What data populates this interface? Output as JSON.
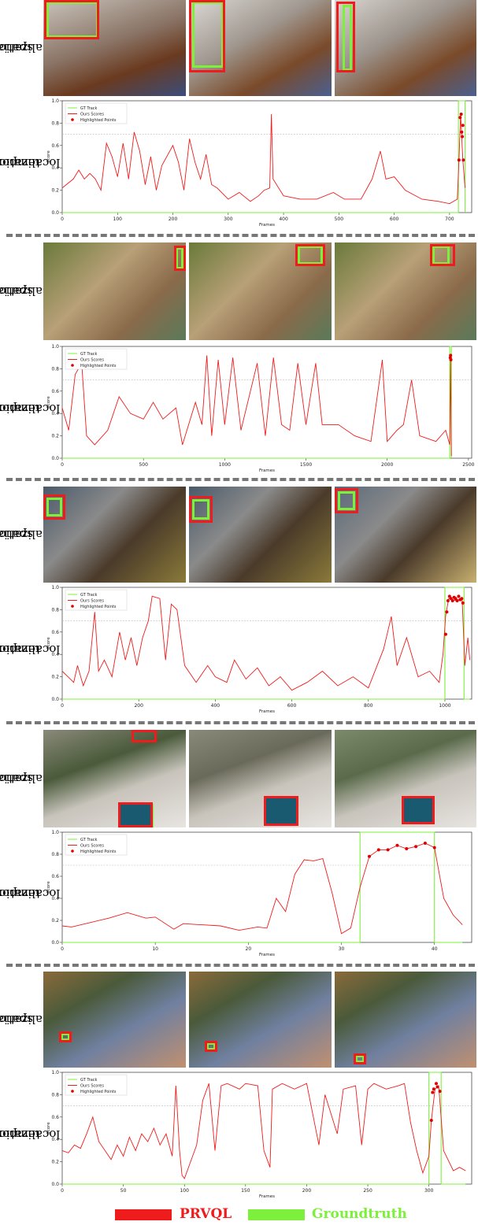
{
  "row_labels": {
    "spatial": [
      "spatial",
      "localization"
    ],
    "temporal": [
      "temporal",
      "localization"
    ]
  },
  "colors": {
    "prediction": "#ee1c1c",
    "groundtruth": "#7cf03a",
    "threshold": "#bbbbbb"
  },
  "bottom_legend": {
    "prediction_label": "PRVQL",
    "groundtruth_label": "Groundtruth"
  },
  "plot_text": {
    "legend": [
      "GT Track",
      "Ours Scores",
      "Highlighted Points"
    ],
    "ylabel": "Score",
    "xlabel": "Frames"
  },
  "chart_data": [
    {
      "type": "line",
      "xlim": [
        0,
        740
      ],
      "xticks": [
        0,
        100,
        200,
        300,
        400,
        500,
        600,
        700
      ],
      "ylim": [
        0,
        1.0
      ],
      "yticks": [
        0.0,
        0.2,
        0.4,
        0.6,
        0.8,
        1.0
      ],
      "threshold": 0.7,
      "gt_track": {
        "start": 716,
        "end": 728
      },
      "scores": [
        [
          0,
          0.22
        ],
        [
          20,
          0.3
        ],
        [
          30,
          0.38
        ],
        [
          40,
          0.3
        ],
        [
          50,
          0.35
        ],
        [
          60,
          0.3
        ],
        [
          70,
          0.2
        ],
        [
          80,
          0.62
        ],
        [
          90,
          0.5
        ],
        [
          100,
          0.32
        ],
        [
          110,
          0.62
        ],
        [
          120,
          0.3
        ],
        [
          130,
          0.72
        ],
        [
          140,
          0.55
        ],
        [
          150,
          0.25
        ],
        [
          160,
          0.5
        ],
        [
          170,
          0.2
        ],
        [
          180,
          0.42
        ],
        [
          200,
          0.6
        ],
        [
          210,
          0.45
        ],
        [
          220,
          0.2
        ],
        [
          230,
          0.66
        ],
        [
          240,
          0.45
        ],
        [
          250,
          0.3
        ],
        [
          260,
          0.52
        ],
        [
          270,
          0.25
        ],
        [
          280,
          0.22
        ],
        [
          300,
          0.12
        ],
        [
          320,
          0.18
        ],
        [
          340,
          0.1
        ],
        [
          355,
          0.15
        ],
        [
          365,
          0.2
        ],
        [
          375,
          0.22
        ],
        [
          378,
          0.88
        ],
        [
          381,
          0.3
        ],
        [
          400,
          0.15
        ],
        [
          430,
          0.12
        ],
        [
          460,
          0.12
        ],
        [
          490,
          0.18
        ],
        [
          510,
          0.12
        ],
        [
          540,
          0.12
        ],
        [
          560,
          0.3
        ],
        [
          575,
          0.55
        ],
        [
          585,
          0.3
        ],
        [
          600,
          0.32
        ],
        [
          620,
          0.2
        ],
        [
          650,
          0.12
        ],
        [
          680,
          0.1
        ],
        [
          700,
          0.08
        ],
        [
          714,
          0.12
        ],
        [
          717,
          0.47
        ],
        [
          720,
          0.88
        ],
        [
          724,
          0.47
        ],
        [
          728,
          0.22
        ]
      ],
      "highlighted": [
        [
          717,
          0.47
        ],
        [
          719,
          0.85
        ],
        [
          721,
          0.88
        ],
        [
          722,
          0.72
        ],
        [
          723,
          0.68
        ],
        [
          724,
          0.78
        ],
        [
          725,
          0.47
        ]
      ]
    },
    {
      "type": "line",
      "xlim": [
        0,
        2520
      ],
      "xticks": [
        0,
        500,
        1000,
        1500,
        2000,
        2500
      ],
      "ylim": [
        0,
        1.0
      ],
      "yticks": [
        0.0,
        0.2,
        0.4,
        0.6,
        0.8,
        1.0
      ],
      "threshold": 0.7,
      "gt_track": {
        "start": 2385,
        "end": 2395
      },
      "scores": [
        [
          0,
          0.45
        ],
        [
          40,
          0.25
        ],
        [
          80,
          0.75
        ],
        [
          120,
          0.85
        ],
        [
          150,
          0.2
        ],
        [
          200,
          0.12
        ],
        [
          280,
          0.25
        ],
        [
          350,
          0.55
        ],
        [
          420,
          0.4
        ],
        [
          500,
          0.35
        ],
        [
          560,
          0.5
        ],
        [
          620,
          0.35
        ],
        [
          700,
          0.45
        ],
        [
          740,
          0.12
        ],
        [
          820,
          0.5
        ],
        [
          860,
          0.3
        ],
        [
          890,
          0.92
        ],
        [
          920,
          0.2
        ],
        [
          960,
          0.88
        ],
        [
          1000,
          0.3
        ],
        [
          1050,
          0.9
        ],
        [
          1100,
          0.25
        ],
        [
          1200,
          0.85
        ],
        [
          1250,
          0.2
        ],
        [
          1300,
          0.9
        ],
        [
          1350,
          0.3
        ],
        [
          1400,
          0.25
        ],
        [
          1450,
          0.85
        ],
        [
          1500,
          0.3
        ],
        [
          1560,
          0.85
        ],
        [
          1600,
          0.3
        ],
        [
          1700,
          0.3
        ],
        [
          1800,
          0.2
        ],
        [
          1900,
          0.15
        ],
        [
          1970,
          0.88
        ],
        [
          2000,
          0.15
        ],
        [
          2060,
          0.25
        ],
        [
          2100,
          0.3
        ],
        [
          2150,
          0.7
        ],
        [
          2200,
          0.2
        ],
        [
          2300,
          0.15
        ],
        [
          2360,
          0.25
        ],
        [
          2385,
          0.12
        ],
        [
          2390,
          0.9
        ],
        [
          2395,
          0.02
        ]
      ],
      "highlighted": [
        [
          2388,
          0.9
        ],
        [
          2390,
          0.92
        ],
        [
          2392,
          0.88
        ]
      ]
    },
    {
      "type": "line",
      "xlim": [
        0,
        1070
      ],
      "xticks": [
        0,
        200,
        400,
        600,
        800,
        1000
      ],
      "ylim": [
        0,
        1.0
      ],
      "yticks": [
        0.0,
        0.2,
        0.4,
        0.6,
        0.8,
        1.0
      ],
      "threshold": 0.7,
      "gt_track": {
        "start": 1000,
        "end": 1050
      },
      "scores": [
        [
          0,
          0.25
        ],
        [
          15,
          0.2
        ],
        [
          30,
          0.15
        ],
        [
          40,
          0.3
        ],
        [
          55,
          0.12
        ],
        [
          70,
          0.25
        ],
        [
          85,
          0.78
        ],
        [
          95,
          0.25
        ],
        [
          110,
          0.35
        ],
        [
          130,
          0.2
        ],
        [
          150,
          0.6
        ],
        [
          165,
          0.35
        ],
        [
          180,
          0.55
        ],
        [
          195,
          0.3
        ],
        [
          210,
          0.55
        ],
        [
          225,
          0.7
        ],
        [
          235,
          0.92
        ],
        [
          255,
          0.9
        ],
        [
          270,
          0.35
        ],
        [
          285,
          0.85
        ],
        [
          300,
          0.8
        ],
        [
          320,
          0.3
        ],
        [
          350,
          0.15
        ],
        [
          380,
          0.3
        ],
        [
          400,
          0.2
        ],
        [
          430,
          0.15
        ],
        [
          450,
          0.35
        ],
        [
          480,
          0.18
        ],
        [
          510,
          0.28
        ],
        [
          540,
          0.12
        ],
        [
          570,
          0.2
        ],
        [
          600,
          0.08
        ],
        [
          640,
          0.15
        ],
        [
          680,
          0.25
        ],
        [
          720,
          0.12
        ],
        [
          760,
          0.2
        ],
        [
          800,
          0.1
        ],
        [
          840,
          0.45
        ],
        [
          860,
          0.74
        ],
        [
          875,
          0.3
        ],
        [
          900,
          0.55
        ],
        [
          930,
          0.2
        ],
        [
          960,
          0.25
        ],
        [
          985,
          0.15
        ],
        [
          995,
          0.4
        ],
        [
          1002,
          0.75
        ],
        [
          1010,
          0.9
        ],
        [
          1030,
          0.88
        ],
        [
          1045,
          0.9
        ],
        [
          1052,
          0.3
        ],
        [
          1060,
          0.55
        ],
        [
          1065,
          0.35
        ]
      ],
      "highlighted": [
        [
          1002,
          0.58
        ],
        [
          1005,
          0.78
        ],
        [
          1008,
          0.88
        ],
        [
          1012,
          0.92
        ],
        [
          1016,
          0.9
        ],
        [
          1020,
          0.88
        ],
        [
          1024,
          0.91
        ],
        [
          1028,
          0.9
        ],
        [
          1032,
          0.88
        ],
        [
          1036,
          0.92
        ],
        [
          1040,
          0.89
        ],
        [
          1044,
          0.9
        ],
        [
          1047,
          0.86
        ]
      ]
    },
    {
      "type": "line",
      "xlim": [
        0,
        44
      ],
      "xticks": [
        0,
        10,
        20,
        30,
        40
      ],
      "ylim": [
        0,
        1.0
      ],
      "yticks": [
        0.0,
        0.2,
        0.4,
        0.6,
        0.8,
        1.0
      ],
      "threshold": 0.7,
      "gt_track": {
        "start": 32,
        "end": 40
      },
      "scores": [
        [
          0,
          0.15
        ],
        [
          1,
          0.14
        ],
        [
          3,
          0.18
        ],
        [
          5,
          0.22
        ],
        [
          7,
          0.27
        ],
        [
          9,
          0.22
        ],
        [
          10,
          0.23
        ],
        [
          12,
          0.12
        ],
        [
          13,
          0.17
        ],
        [
          15,
          0.16
        ],
        [
          17,
          0.15
        ],
        [
          19,
          0.11
        ],
        [
          21,
          0.14
        ],
        [
          22,
          0.13
        ],
        [
          23,
          0.4
        ],
        [
          24,
          0.28
        ],
        [
          25,
          0.62
        ],
        [
          26,
          0.75
        ],
        [
          27,
          0.74
        ],
        [
          28,
          0.76
        ],
        [
          29,
          0.45
        ],
        [
          30,
          0.08
        ],
        [
          31,
          0.13
        ],
        [
          32,
          0.5
        ],
        [
          33,
          0.78
        ],
        [
          34,
          0.84
        ],
        [
          35,
          0.84
        ],
        [
          36,
          0.88
        ],
        [
          37,
          0.85
        ],
        [
          38,
          0.87
        ],
        [
          39,
          0.9
        ],
        [
          40,
          0.86
        ],
        [
          41,
          0.4
        ],
        [
          42,
          0.25
        ],
        [
          43,
          0.16
        ]
      ],
      "highlighted": [
        [
          33,
          0.78
        ],
        [
          34,
          0.84
        ],
        [
          35,
          0.84
        ],
        [
          36,
          0.88
        ],
        [
          37,
          0.85
        ],
        [
          38,
          0.87
        ],
        [
          39,
          0.9
        ],
        [
          40,
          0.86
        ]
      ]
    },
    {
      "type": "line",
      "xlim": [
        0,
        335
      ],
      "xticks": [
        0,
        50,
        100,
        150,
        200,
        250,
        300
      ],
      "ylim": [
        0,
        1.0
      ],
      "yticks": [
        0.0,
        0.2,
        0.4,
        0.6,
        0.8,
        1.0
      ],
      "threshold": 0.7,
      "gt_track": {
        "start": 300,
        "end": 310
      },
      "scores": [
        [
          0,
          0.3
        ],
        [
          5,
          0.28
        ],
        [
          10,
          0.35
        ],
        [
          15,
          0.32
        ],
        [
          20,
          0.45
        ],
        [
          25,
          0.6
        ],
        [
          30,
          0.38
        ],
        [
          35,
          0.3
        ],
        [
          40,
          0.22
        ],
        [
          45,
          0.35
        ],
        [
          50,
          0.25
        ],
        [
          55,
          0.42
        ],
        [
          60,
          0.3
        ],
        [
          65,
          0.45
        ],
        [
          70,
          0.38
        ],
        [
          75,
          0.5
        ],
        [
          80,
          0.35
        ],
        [
          85,
          0.45
        ],
        [
          90,
          0.25
        ],
        [
          93,
          0.88
        ],
        [
          96,
          0.3
        ],
        [
          98,
          0.08
        ],
        [
          100,
          0.05
        ],
        [
          105,
          0.2
        ],
        [
          110,
          0.35
        ],
        [
          115,
          0.75
        ],
        [
          120,
          0.9
        ],
        [
          125,
          0.3
        ],
        [
          130,
          0.88
        ],
        [
          135,
          0.9
        ],
        [
          145,
          0.85
        ],
        [
          150,
          0.9
        ],
        [
          160,
          0.88
        ],
        [
          165,
          0.3
        ],
        [
          170,
          0.15
        ],
        [
          172,
          0.85
        ],
        [
          180,
          0.9
        ],
        [
          190,
          0.85
        ],
        [
          200,
          0.9
        ],
        [
          210,
          0.35
        ],
        [
          215,
          0.8
        ],
        [
          225,
          0.45
        ],
        [
          230,
          0.85
        ],
        [
          240,
          0.88
        ],
        [
          245,
          0.35
        ],
        [
          250,
          0.85
        ],
        [
          255,
          0.9
        ],
        [
          265,
          0.85
        ],
        [
          275,
          0.88
        ],
        [
          280,
          0.9
        ],
        [
          285,
          0.55
        ],
        [
          290,
          0.3
        ],
        [
          295,
          0.1
        ],
        [
          300,
          0.25
        ],
        [
          302,
          0.57
        ],
        [
          305,
          0.85
        ],
        [
          308,
          0.88
        ],
        [
          312,
          0.3
        ],
        [
          320,
          0.12
        ],
        [
          325,
          0.15
        ],
        [
          330,
          0.12
        ]
      ],
      "highlighted": [
        [
          302,
          0.57
        ],
        [
          303,
          0.82
        ],
        [
          304,
          0.85
        ],
        [
          306,
          0.9
        ],
        [
          307,
          0.87
        ],
        [
          309,
          0.83
        ]
      ]
    }
  ]
}
